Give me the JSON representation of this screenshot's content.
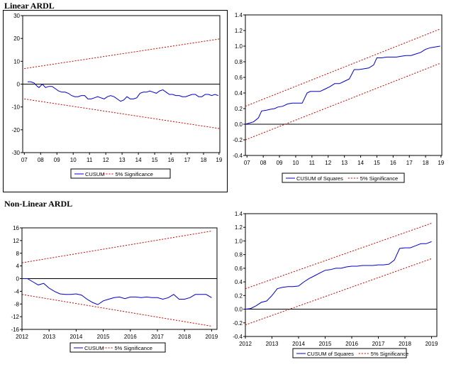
{
  "sections": {
    "linear_title": "Linear ARDL",
    "nonlinear_title": "Non-Linear ARDL"
  },
  "colors": {
    "series": "#0000cc",
    "bounds": "#cc0000",
    "zero": "#000000"
  },
  "chart_data": [
    {
      "type": "line",
      "id": "lin-cusum",
      "xlim": [
        2007,
        2019.1
      ],
      "xticks": [
        2007.1,
        2008.1,
        2009.1,
        2010.1,
        2011.1,
        2012.1,
        2013.1,
        2014.1,
        2015.1,
        2016.1,
        2017.1,
        2018.1,
        2019.05
      ],
      "xtick_labels": [
        "07",
        "08",
        "09",
        "10",
        "11",
        "12",
        "13",
        "14",
        "15",
        "16",
        "17",
        "18",
        "19"
      ],
      "ylim": [
        -30,
        30
      ],
      "yticks": [
        -30,
        -20,
        -10,
        0,
        10,
        20,
        30
      ],
      "ytick_labels": [
        "-30",
        "-20",
        "-10",
        "0",
        "10",
        "20",
        "30"
      ],
      "zero_line": true,
      "series": [
        {
          "name": "CUSUM",
          "role": "series",
          "x": [
            2007.3,
            2007.5,
            2007.7,
            2007.9,
            2008.0,
            2008.2,
            2008.4,
            2008.6,
            2008.8,
            2009.0,
            2009.2,
            2009.4,
            2009.6,
            2009.8,
            2010.0,
            2010.2,
            2010.4,
            2010.6,
            2010.8,
            2011.0,
            2011.2,
            2011.4,
            2011.6,
            2011.8,
            2012.0,
            2012.2,
            2012.4,
            2012.6,
            2012.8,
            2013.0,
            2013.2,
            2013.4,
            2013.6,
            2013.8,
            2014.0,
            2014.2,
            2014.4,
            2014.6,
            2014.8,
            2015.0,
            2015.2,
            2015.4,
            2015.6,
            2015.8,
            2016.0,
            2016.2,
            2016.4,
            2016.6,
            2016.8,
            2017.0,
            2017.2,
            2017.4,
            2017.6,
            2017.8,
            2018.0,
            2018.2,
            2018.4,
            2018.6,
            2018.8,
            2019.0
          ],
          "y": [
            1,
            1,
            0.5,
            -1,
            -1.5,
            0,
            -1.5,
            -1,
            -1,
            -2,
            -3,
            -3.5,
            -3.5,
            -4,
            -5,
            -5.5,
            -5.5,
            -5,
            -5,
            -6.5,
            -6.5,
            -6,
            -5.5,
            -6,
            -6.5,
            -5.5,
            -5,
            -5.5,
            -6.5,
            -7.5,
            -7,
            -5.5,
            -6.5,
            -6.5,
            -6,
            -4,
            -3.5,
            -3.5,
            -3,
            -3.5,
            -4,
            -3,
            -2.5,
            -3.5,
            -4.5,
            -4.5,
            -5,
            -5,
            -5.5,
            -5.5,
            -5,
            -4.5,
            -4.5,
            -5.5,
            -5.5,
            -4.5,
            -4.5,
            -5,
            -4.5,
            -5
          ]
        },
        {
          "name": "5% Significance",
          "role": "upper",
          "x": [
            2007.1,
            2019.1
          ],
          "y": [
            6.8,
            19.8
          ]
        },
        {
          "name": "5% Significance",
          "role": "lower",
          "x": [
            2007.1,
            2019.1
          ],
          "y": [
            -6.5,
            -19.5
          ]
        }
      ],
      "legend": [
        "CUSUM",
        "5% Significance"
      ]
    },
    {
      "type": "line",
      "id": "lin-cusumsq",
      "xlim": [
        2007,
        2019.1
      ],
      "xticks": [
        2007.1,
        2008.1,
        2009.1,
        2010.1,
        2011.1,
        2012.1,
        2013.1,
        2014.1,
        2015.1,
        2016.1,
        2017.1,
        2018.1,
        2019.05
      ],
      "xtick_labels": [
        "07",
        "08",
        "09",
        "10",
        "11",
        "12",
        "13",
        "14",
        "15",
        "16",
        "17",
        "18",
        "19"
      ],
      "ylim": [
        -0.4,
        1.4
      ],
      "yticks": [
        -0.4,
        -0.2,
        0,
        0.2,
        0.4,
        0.6,
        0.8,
        1.0,
        1.2,
        1.4
      ],
      "ytick_labels": [
        "-0.4",
        "-0.2",
        "0.0",
        "0.2",
        "0.4",
        "0.6",
        "0.8",
        "1.0",
        "1.2",
        "1.4"
      ],
      "zero_line": true,
      "series": [
        {
          "name": "CUSUM of Squares",
          "role": "series",
          "x": [
            2007.0,
            2007.5,
            2007.8,
            2008.0,
            2008.3,
            2008.5,
            2008.8,
            2009.0,
            2009.3,
            2009.6,
            2009.9,
            2010.2,
            2010.5,
            2010.8,
            2011.0,
            2011.3,
            2011.6,
            2011.9,
            2012.2,
            2012.5,
            2012.8,
            2013.1,
            2013.4,
            2013.7,
            2014.0,
            2014.3,
            2014.6,
            2014.9,
            2015.1,
            2015.4,
            2015.7,
            2016.0,
            2016.3,
            2016.6,
            2016.9,
            2017.2,
            2017.5,
            2017.8,
            2018.1,
            2018.4,
            2018.7,
            2019.0
          ],
          "y": [
            0.0,
            0.03,
            0.08,
            0.17,
            0.18,
            0.19,
            0.2,
            0.22,
            0.23,
            0.26,
            0.27,
            0.27,
            0.27,
            0.4,
            0.42,
            0.42,
            0.42,
            0.45,
            0.48,
            0.52,
            0.52,
            0.55,
            0.58,
            0.7,
            0.7,
            0.71,
            0.72,
            0.76,
            0.85,
            0.85,
            0.86,
            0.86,
            0.86,
            0.87,
            0.88,
            0.88,
            0.9,
            0.92,
            0.96,
            0.98,
            0.99,
            1.0
          ]
        },
        {
          "name": "5% Significance",
          "role": "upper",
          "x": [
            2007.0,
            2019.0
          ],
          "y": [
            0.23,
            1.22
          ]
        },
        {
          "name": "5% Significance",
          "role": "lower",
          "x": [
            2007.0,
            2019.0
          ],
          "y": [
            -0.2,
            0.78
          ]
        }
      ],
      "legend": [
        "CUSUM of Squares",
        "5% Significance"
      ]
    },
    {
      "type": "line",
      "id": "nonlin-cusum",
      "xlim": [
        2012,
        2019.2
      ],
      "xticks": [
        2012,
        2013,
        2014,
        2015,
        2016,
        2017,
        2018,
        2019
      ],
      "xtick_labels": [
        "2012",
        "2013",
        "2014",
        "2015",
        "2016",
        "2017",
        "2018",
        "2019"
      ],
      "ylim": [
        -16,
        16
      ],
      "yticks": [
        -16,
        -12,
        -8,
        -4,
        0,
        4,
        8,
        12,
        16
      ],
      "ytick_labels": [
        "-16",
        "-12",
        "-8",
        "-4",
        "0",
        "4",
        "8",
        "12",
        "16"
      ],
      "zero_line": true,
      "series": [
        {
          "name": "CUSUM",
          "role": "series",
          "x": [
            2012.0,
            2012.2,
            2012.4,
            2012.6,
            2012.8,
            2013.0,
            2013.2,
            2013.4,
            2013.6,
            2013.8,
            2014.0,
            2014.2,
            2014.4,
            2014.6,
            2014.8,
            2015.0,
            2015.2,
            2015.4,
            2015.6,
            2015.8,
            2016.0,
            2016.2,
            2016.4,
            2016.6,
            2016.8,
            2017.0,
            2017.2,
            2017.4,
            2017.6,
            2017.8,
            2018.0,
            2018.2,
            2018.4,
            2018.6,
            2018.8,
            2019.0
          ],
          "y": [
            0,
            0,
            -1,
            -2,
            -1.5,
            -3,
            -4,
            -4.8,
            -5,
            -5,
            -4.8,
            -5.2,
            -6.5,
            -7.5,
            -8.2,
            -7,
            -6.5,
            -6,
            -5.8,
            -6.3,
            -5.8,
            -5.8,
            -6,
            -5.8,
            -6,
            -6,
            -6.5,
            -6,
            -5,
            -6.5,
            -6.5,
            -6,
            -5,
            -5,
            -5,
            -6
          ]
        },
        {
          "name": "5% Significance",
          "role": "upper",
          "x": [
            2012.0,
            2019.0
          ],
          "y": [
            5,
            15
          ]
        },
        {
          "name": "5% Significance",
          "role": "lower",
          "x": [
            2012.0,
            2019.0
          ],
          "y": [
            -5,
            -15
          ]
        }
      ],
      "legend": [
        "CUSUM",
        "5% Significance"
      ]
    },
    {
      "type": "line",
      "id": "nonlin-cusumsq",
      "xlim": [
        2012,
        2019.2
      ],
      "xticks": [
        2012,
        2013,
        2014,
        2015,
        2016,
        2017,
        2018,
        2019
      ],
      "xtick_labels": [
        "2012",
        "2013",
        "2014",
        "2015",
        "2016",
        "2017",
        "2018",
        "2019"
      ],
      "ylim": [
        -0.4,
        1.4
      ],
      "yticks": [
        -0.4,
        -0.2,
        0,
        0.2,
        0.4,
        0.6,
        0.8,
        1.0,
        1.2,
        1.4
      ],
      "ytick_labels": [
        "-0.4",
        "-0.2",
        "0.0",
        "0.2",
        "0.4",
        "0.6",
        "0.8",
        "1.0",
        "1.2",
        "1.4"
      ],
      "zero_line": true,
      "series": [
        {
          "name": "CUSUM of Squares",
          "role": "series",
          "x": [
            2012.0,
            2012.2,
            2012.4,
            2012.6,
            2012.8,
            2013.0,
            2013.2,
            2013.4,
            2013.6,
            2013.8,
            2014.0,
            2014.2,
            2014.4,
            2014.6,
            2014.8,
            2015.0,
            2015.2,
            2015.4,
            2015.6,
            2015.8,
            2016.0,
            2016.2,
            2016.4,
            2016.6,
            2016.8,
            2017.0,
            2017.2,
            2017.4,
            2017.6,
            2017.8,
            2018.0,
            2018.2,
            2018.4,
            2018.6,
            2018.8,
            2019.0
          ],
          "y": [
            0,
            0.01,
            0.05,
            0.1,
            0.12,
            0.2,
            0.3,
            0.32,
            0.33,
            0.33,
            0.34,
            0.4,
            0.45,
            0.49,
            0.53,
            0.57,
            0.58,
            0.6,
            0.6,
            0.62,
            0.63,
            0.63,
            0.64,
            0.64,
            0.64,
            0.65,
            0.65,
            0.66,
            0.72,
            0.89,
            0.9,
            0.9,
            0.93,
            0.96,
            0.96,
            0.99
          ]
        },
        {
          "name": "5% Significance",
          "role": "upper",
          "x": [
            2012.0,
            2019.0
          ],
          "y": [
            0.3,
            1.26
          ]
        },
        {
          "name": "5% Significance",
          "role": "lower",
          "x": [
            2012.0,
            2019.0
          ],
          "y": [
            -0.23,
            0.74
          ]
        }
      ],
      "legend": [
        "CUSUM of Squares",
        "5% Significance"
      ]
    }
  ]
}
